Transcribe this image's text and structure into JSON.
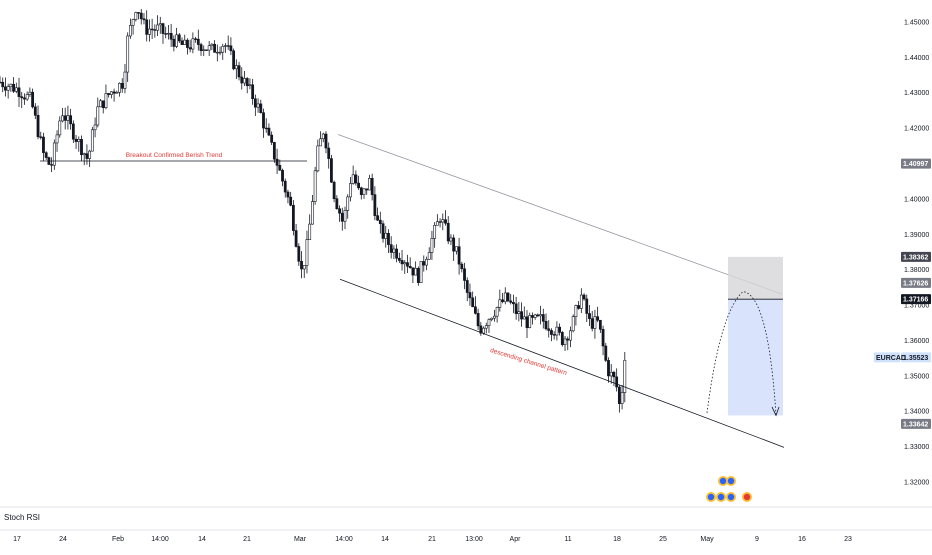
{
  "symbol": "EURCAD",
  "indicator_label": "Stoch RSI",
  "chart_data": {
    "type": "candlestick",
    "ylim": [
      1.3135,
      1.4562
    ],
    "y_ticks": [
      1.45,
      1.44,
      1.43,
      1.42,
      1.41,
      1.4,
      1.39,
      1.38,
      1.37,
      1.36,
      1.35,
      1.34,
      1.33,
      1.32
    ],
    "y_tick_labels": [
      "1.45000",
      "1.44000",
      "1.43000",
      "1.42000",
      "1.41000",
      "1.40000",
      "1.39000",
      "1.38000",
      "1.37000",
      "1.36000",
      "1.35000",
      "1.34000",
      "1.33000",
      "1.32000"
    ],
    "x_tick_labels": [
      "17",
      "24",
      "Feb",
      "14:00",
      "14",
      "21",
      "Mar",
      "14:00",
      "14",
      "21",
      "13:00",
      "Apr",
      "11",
      "18",
      "25",
      "May",
      "9",
      "16",
      "23"
    ],
    "series_close_path": [
      [
        0,
        1.433
      ],
      [
        0.02,
        1.431
      ],
      [
        0.035,
        1.428
      ],
      [
        0.05,
        1.412
      ],
      [
        0.058,
        1.409
      ],
      [
        0.07,
        1.425
      ],
      [
        0.085,
        1.418
      ],
      [
        0.1,
        1.411
      ],
      [
        0.11,
        1.425
      ],
      [
        0.125,
        1.43
      ],
      [
        0.14,
        1.433
      ],
      [
        0.145,
        1.445
      ],
      [
        0.155,
        1.455
      ],
      [
        0.165,
        1.448
      ],
      [
        0.18,
        1.448
      ],
      [
        0.19,
        1.446
      ],
      [
        0.21,
        1.443
      ],
      [
        0.225,
        1.444
      ],
      [
        0.24,
        1.442
      ],
      [
        0.255,
        1.444
      ],
      [
        0.27,
        1.436
      ],
      [
        0.285,
        1.43
      ],
      [
        0.295,
        1.425
      ],
      [
        0.305,
        1.417
      ],
      [
        0.315,
        1.41
      ],
      [
        0.33,
        1.398
      ],
      [
        0.343,
        1.379
      ],
      [
        0.35,
        1.388
      ],
      [
        0.36,
        1.412
      ],
      [
        0.368,
        1.42
      ],
      [
        0.38,
        1.401
      ],
      [
        0.39,
        1.393
      ],
      [
        0.4,
        1.408
      ],
      [
        0.41,
        1.4
      ],
      [
        0.42,
        1.405
      ],
      [
        0.43,
        1.392
      ],
      [
        0.445,
        1.386
      ],
      [
        0.46,
        1.383
      ],
      [
        0.475,
        1.378
      ],
      [
        0.49,
        1.388
      ],
      [
        0.5,
        1.395
      ],
      [
        0.51,
        1.389
      ],
      [
        0.52,
        1.384
      ],
      [
        0.53,
        1.374
      ],
      [
        0.545,
        1.363
      ],
      [
        0.56,
        1.368
      ],
      [
        0.575,
        1.372
      ],
      [
        0.59,
        1.367
      ],
      [
        0.6,
        1.365
      ],
      [
        0.615,
        1.366
      ],
      [
        0.63,
        1.363
      ],
      [
        0.64,
        1.36
      ],
      [
        0.65,
        1.364
      ],
      [
        0.66,
        1.373
      ],
      [
        0.67,
        1.365
      ],
      [
        0.68,
        1.365
      ],
      [
        0.69,
        1.352
      ],
      [
        0.7,
        1.348
      ],
      [
        0.705,
        1.34
      ],
      [
        0.71,
        1.356
      ]
    ],
    "markers": [
      {
        "label": "1.40997",
        "value": 1.40997,
        "style": "gray"
      },
      {
        "label": "1.38362",
        "value": 1.38362,
        "style": "dark"
      },
      {
        "label": "1.37626",
        "value": 1.37626,
        "style": "gray"
      },
      {
        "label": "1.37166",
        "value": 1.37166,
        "style": "black"
      },
      {
        "label": "1.35523",
        "value": 1.35523,
        "style": "symbol"
      },
      {
        "label": "1.33642",
        "value": 1.33642,
        "style": "gray"
      }
    ],
    "annotations": [
      {
        "text": "Breakout Confirmed Berish Trend",
        "value": 1.4107
      },
      {
        "text": "descending channel pattern",
        "value": 1.3535
      }
    ],
    "trade_setup": {
      "entry": 1.37166,
      "stop": 1.38362,
      "target": 1.3388
    },
    "channel": {
      "upper": [
        [
          1.4182
        ],
        [
          1.3731
        ]
      ],
      "lower": [
        [
          1.3773
        ],
        [
          1.3298
        ]
      ]
    },
    "support_line": 1.4107
  },
  "colors": {
    "accent_red": "#e53935",
    "stop_zone": "#d6d6d8",
    "target_zone": "#d2defb",
    "bull": "#ffffff",
    "bear": "#131722"
  }
}
